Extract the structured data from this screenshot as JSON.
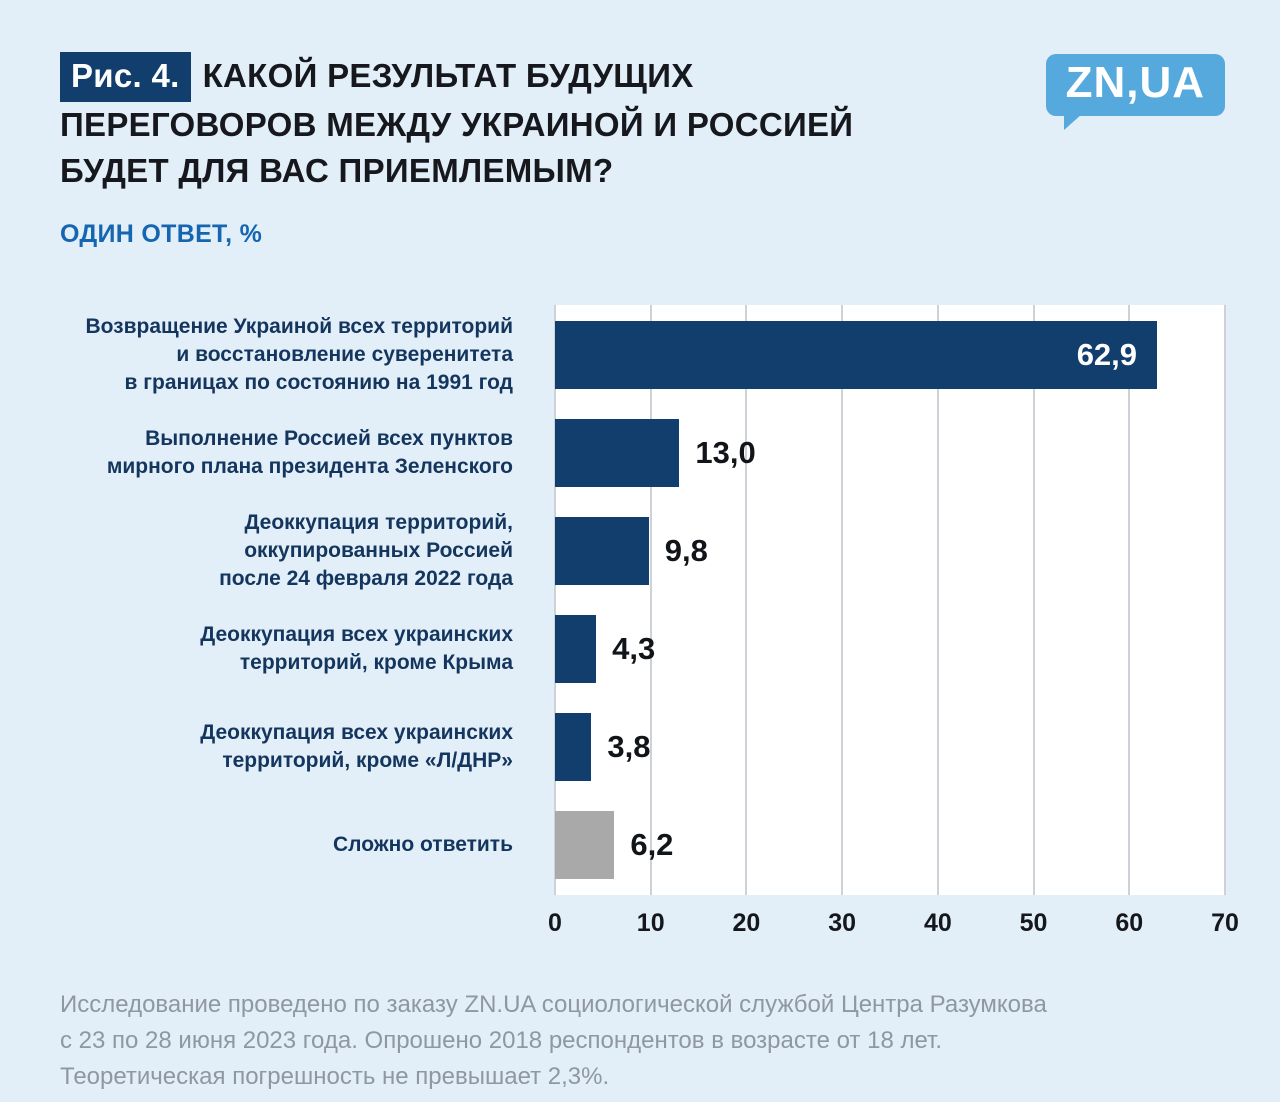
{
  "header": {
    "fig_label": "Рис. 4.",
    "title": "КАКОЙ РЕЗУЛЬТАТ БУДУЩИХ ПЕРЕГОВОРОВ МЕЖДУ УКРАИНОЙ И РОССИЕЙ БУДЕТ ДЛЯ ВАС ПРИЕМЛЕМЫМ?",
    "title_lines": [
      "КАКОЙ РЕЗУЛЬТАТ БУДУЩИХ",
      "ПЕРЕГОВОРОВ МЕЖДУ УКРАИНОЙ И РОССИЕЙ",
      "БУДЕТ ДЛЯ ВАС ПРИЕМЛЕМЫМ?"
    ],
    "subtitle": "ОДИН ОТВЕТ, %",
    "logo_text": "ZN,UA"
  },
  "chart_data": {
    "type": "bar",
    "orientation": "horizontal",
    "title": "КАКОЙ РЕЗУЛЬТАТ БУДУЩИХ ПЕРЕГОВОРОВ МЕЖДУ УКРАИНОЙ И РОССИЕЙ БУДЕТ ДЛЯ ВАС ПРИЕМЛЕМЫМ?",
    "subtitle": "ОДИН ОТВЕТ, %",
    "categories": [
      "Возвращение Украиной всех территорий и восстановление суверенитета в границах по состоянию на 1991 год",
      "Выполнение Россией всех пунктов мирного плана президента Зеленского",
      "Деоккупация территорий, оккупированных Россией после 24 февраля 2022 года",
      "Деоккупация всех украинских территорий, кроме Крыма",
      "Деоккупация всех украинских территорий, кроме «Л/ДНР»",
      "Сложно ответить"
    ],
    "category_lines": [
      [
        "Возвращение Украиной всех территорий",
        "и восстановление суверенитета",
        "в границах по состоянию на 1991 год"
      ],
      [
        "Выполнение Россией всех пунктов",
        "мирного плана президента Зеленского"
      ],
      [
        "Деоккупация территорий,",
        "оккупированных Россией",
        "после 24 февраля 2022 года"
      ],
      [
        "Деоккупация всех украинских",
        "территорий, кроме Крыма"
      ],
      [
        "Деоккупация всех украинских",
        "территорий, кроме «Л/ДНР»"
      ],
      [
        "Сложно ответить"
      ]
    ],
    "values": [
      62.9,
      13.0,
      9.8,
      4.3,
      3.8,
      6.2
    ],
    "value_labels": [
      "62,9",
      "13,0",
      "9,8",
      "4,3",
      "3,8",
      "6,2"
    ],
    "xlim": [
      0,
      70
    ],
    "xticks": [
      0,
      10,
      20,
      30,
      40,
      50,
      60,
      70
    ],
    "grid": true,
    "legend": "none",
    "bar_color": "#123e6d",
    "last_bar_color": "#a9a9a9",
    "value_label_inside_threshold": 50
  },
  "footer": {
    "lines": [
      "Исследование проведено по заказу ZN.UA социологической службой Центра Разумкова",
      "с 23 по 28 июня 2023 года. Опрошено 2018 респондентов в возрасте от 18 лет.",
      "Теоретическая погрешность не превышает 2,3%."
    ]
  },
  "colors": {
    "background": "#e2eff8",
    "brand_navy": "#123e6d",
    "brand_light_blue": "#55a9dc",
    "subtitle_blue": "#1565af",
    "neutral_bar_gray": "#a9a9a9",
    "footer_gray": "#8f97a1"
  }
}
